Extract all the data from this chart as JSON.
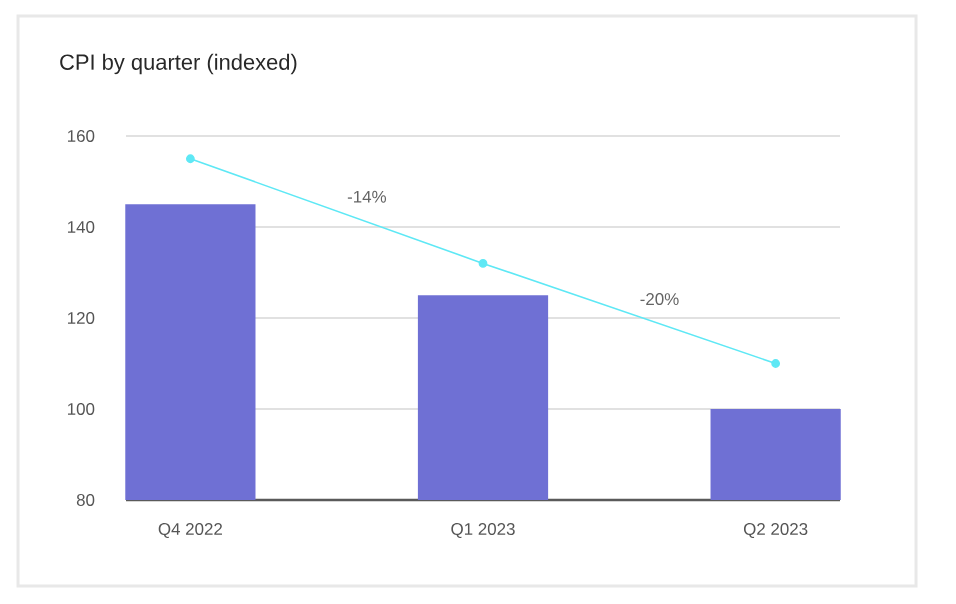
{
  "chart_data": {
    "type": "bar",
    "title": "CPI by quarter (indexed)",
    "categories": [
      "Q4 2022",
      "Q1 2023",
      "Q2 2023"
    ],
    "series": [
      {
        "color": "#6f70d4",
        "values": [
          145,
          125,
          100
        ]
      },
      {
        "type": "line",
        "color": "#5ee8f5",
        "values": [
          155,
          132,
          110
        ],
        "marker": "circle"
      }
    ],
    "annotations": [
      "-14%",
      "-20%"
    ],
    "ylim": [
      80,
      160
    ],
    "yticks": [
      80,
      100,
      120,
      140,
      160
    ],
    "grid": "y"
  }
}
